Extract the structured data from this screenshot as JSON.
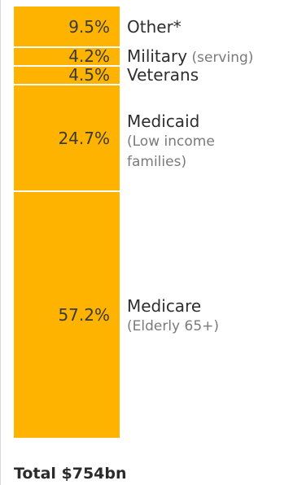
{
  "colors": {
    "bar": "#FEB300",
    "divider": "#ffffff"
  },
  "chart_data": {
    "type": "bar",
    "stacked": true,
    "orientation": "vertical",
    "categories": [
      "Medicare",
      "Medicaid",
      "Veterans",
      "Military",
      "Other*"
    ],
    "values": [
      57.2,
      24.7,
      4.5,
      4.2,
      9.5
    ],
    "value_labels": [
      "57.2%",
      "24.7%",
      "4.5%",
      "4.2%",
      "9.5%"
    ],
    "notes": [
      "(Elderly 65+)",
      "(Low income\nfamilies)",
      "",
      "(serving)",
      ""
    ],
    "unit": "%",
    "total_label": "Total $754bn"
  }
}
